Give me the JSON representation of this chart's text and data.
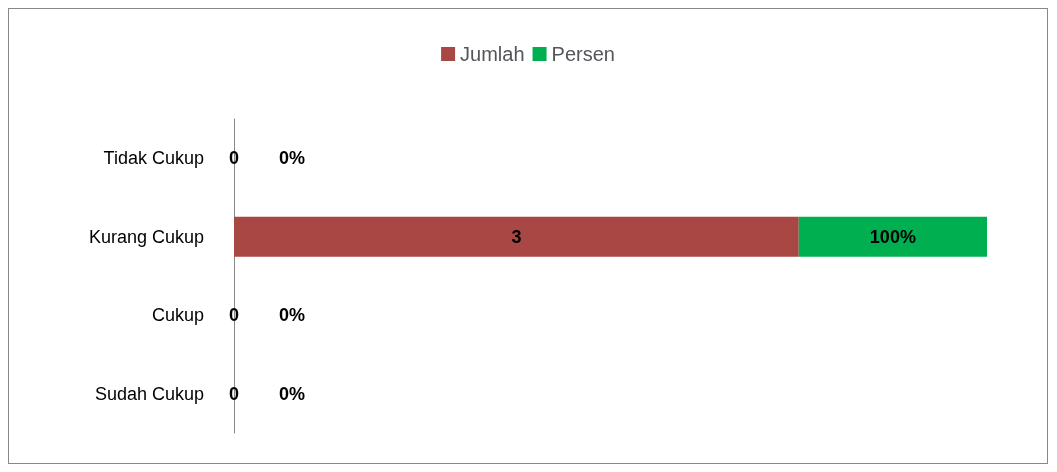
{
  "chart_data": {
    "type": "bar",
    "orientation": "horizontal",
    "stacked": true,
    "legend": "top",
    "categories": [
      "Tidak Cukup",
      "Kurang Cukup",
      "Cukup",
      "Sudah Cukup"
    ],
    "series": [
      {
        "name": "Jumlah",
        "color": "#a94744",
        "values": [
          0,
          3,
          0,
          0
        ],
        "value_labels": [
          "0",
          "3",
          "0",
          "0"
        ]
      },
      {
        "name": "Persen",
        "color": "#00b050",
        "values": [
          0,
          1,
          0,
          0
        ],
        "value_labels": [
          "0%",
          "100%",
          "0%",
          "0%"
        ]
      }
    ]
  }
}
